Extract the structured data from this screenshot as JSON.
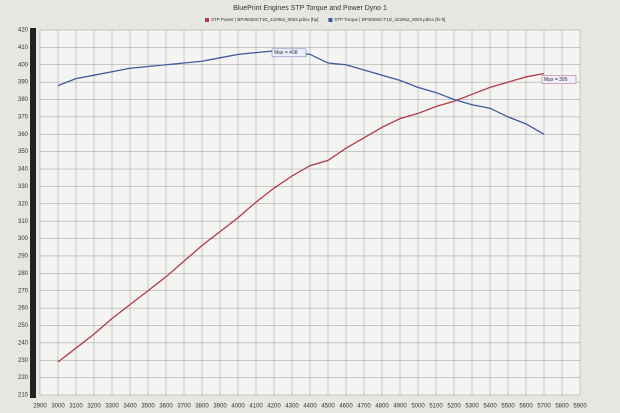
{
  "chart_data": {
    "type": "line",
    "title": "BluePrint Engines STP Torque and Power Dyno 1",
    "x": [
      3000,
      3100,
      3200,
      3300,
      3400,
      3500,
      3600,
      3700,
      3800,
      3900,
      4000,
      4100,
      4200,
      4300,
      4400,
      4500,
      4600,
      4700,
      4800,
      4900,
      5000,
      5100,
      5200,
      5300,
      5400,
      5500,
      5600,
      5700
    ],
    "series": [
      {
        "name": "STP Power | BP35092CT1D_422962_0003.pdtxx [hp]",
        "color": "#b03a48",
        "values": [
          229,
          237,
          245,
          254,
          262,
          270,
          278,
          287,
          296,
          304,
          312,
          321,
          329,
          336,
          342,
          345,
          352,
          358,
          364,
          369,
          372,
          376,
          379,
          383,
          387,
          390,
          393,
          395
        ],
        "annotation": "Max = 395"
      },
      {
        "name": "STP Torque | BP35092CT1D_422962_0003.pdtxx [lb-ft]",
        "color": "#3f5a9e",
        "values": [
          388,
          392,
          394,
          396,
          398,
          399,
          400,
          401,
          402,
          404,
          406,
          407,
          408,
          407,
          406,
          401,
          400,
          397,
          394,
          391,
          387,
          384,
          380,
          377,
          375,
          370,
          366,
          360
        ],
        "annotation": "Max = 408"
      }
    ],
    "xlim": [
      2900,
      5900
    ],
    "xticks": [
      2900,
      3000,
      3100,
      3200,
      3300,
      3400,
      3500,
      3600,
      3700,
      3800,
      3900,
      4000,
      4100,
      4200,
      4300,
      4400,
      4500,
      4600,
      4700,
      4800,
      4900,
      5000,
      5100,
      5200,
      5300,
      5400,
      5500,
      5600,
      5700,
      5800,
      5900
    ],
    "ylim": [
      210,
      420
    ],
    "yticks": [
      210,
      220,
      230,
      240,
      250,
      260,
      270,
      280,
      290,
      300,
      310,
      320,
      330,
      340,
      350,
      360,
      370,
      380,
      390,
      400,
      410,
      420
    ],
    "grid": true
  }
}
